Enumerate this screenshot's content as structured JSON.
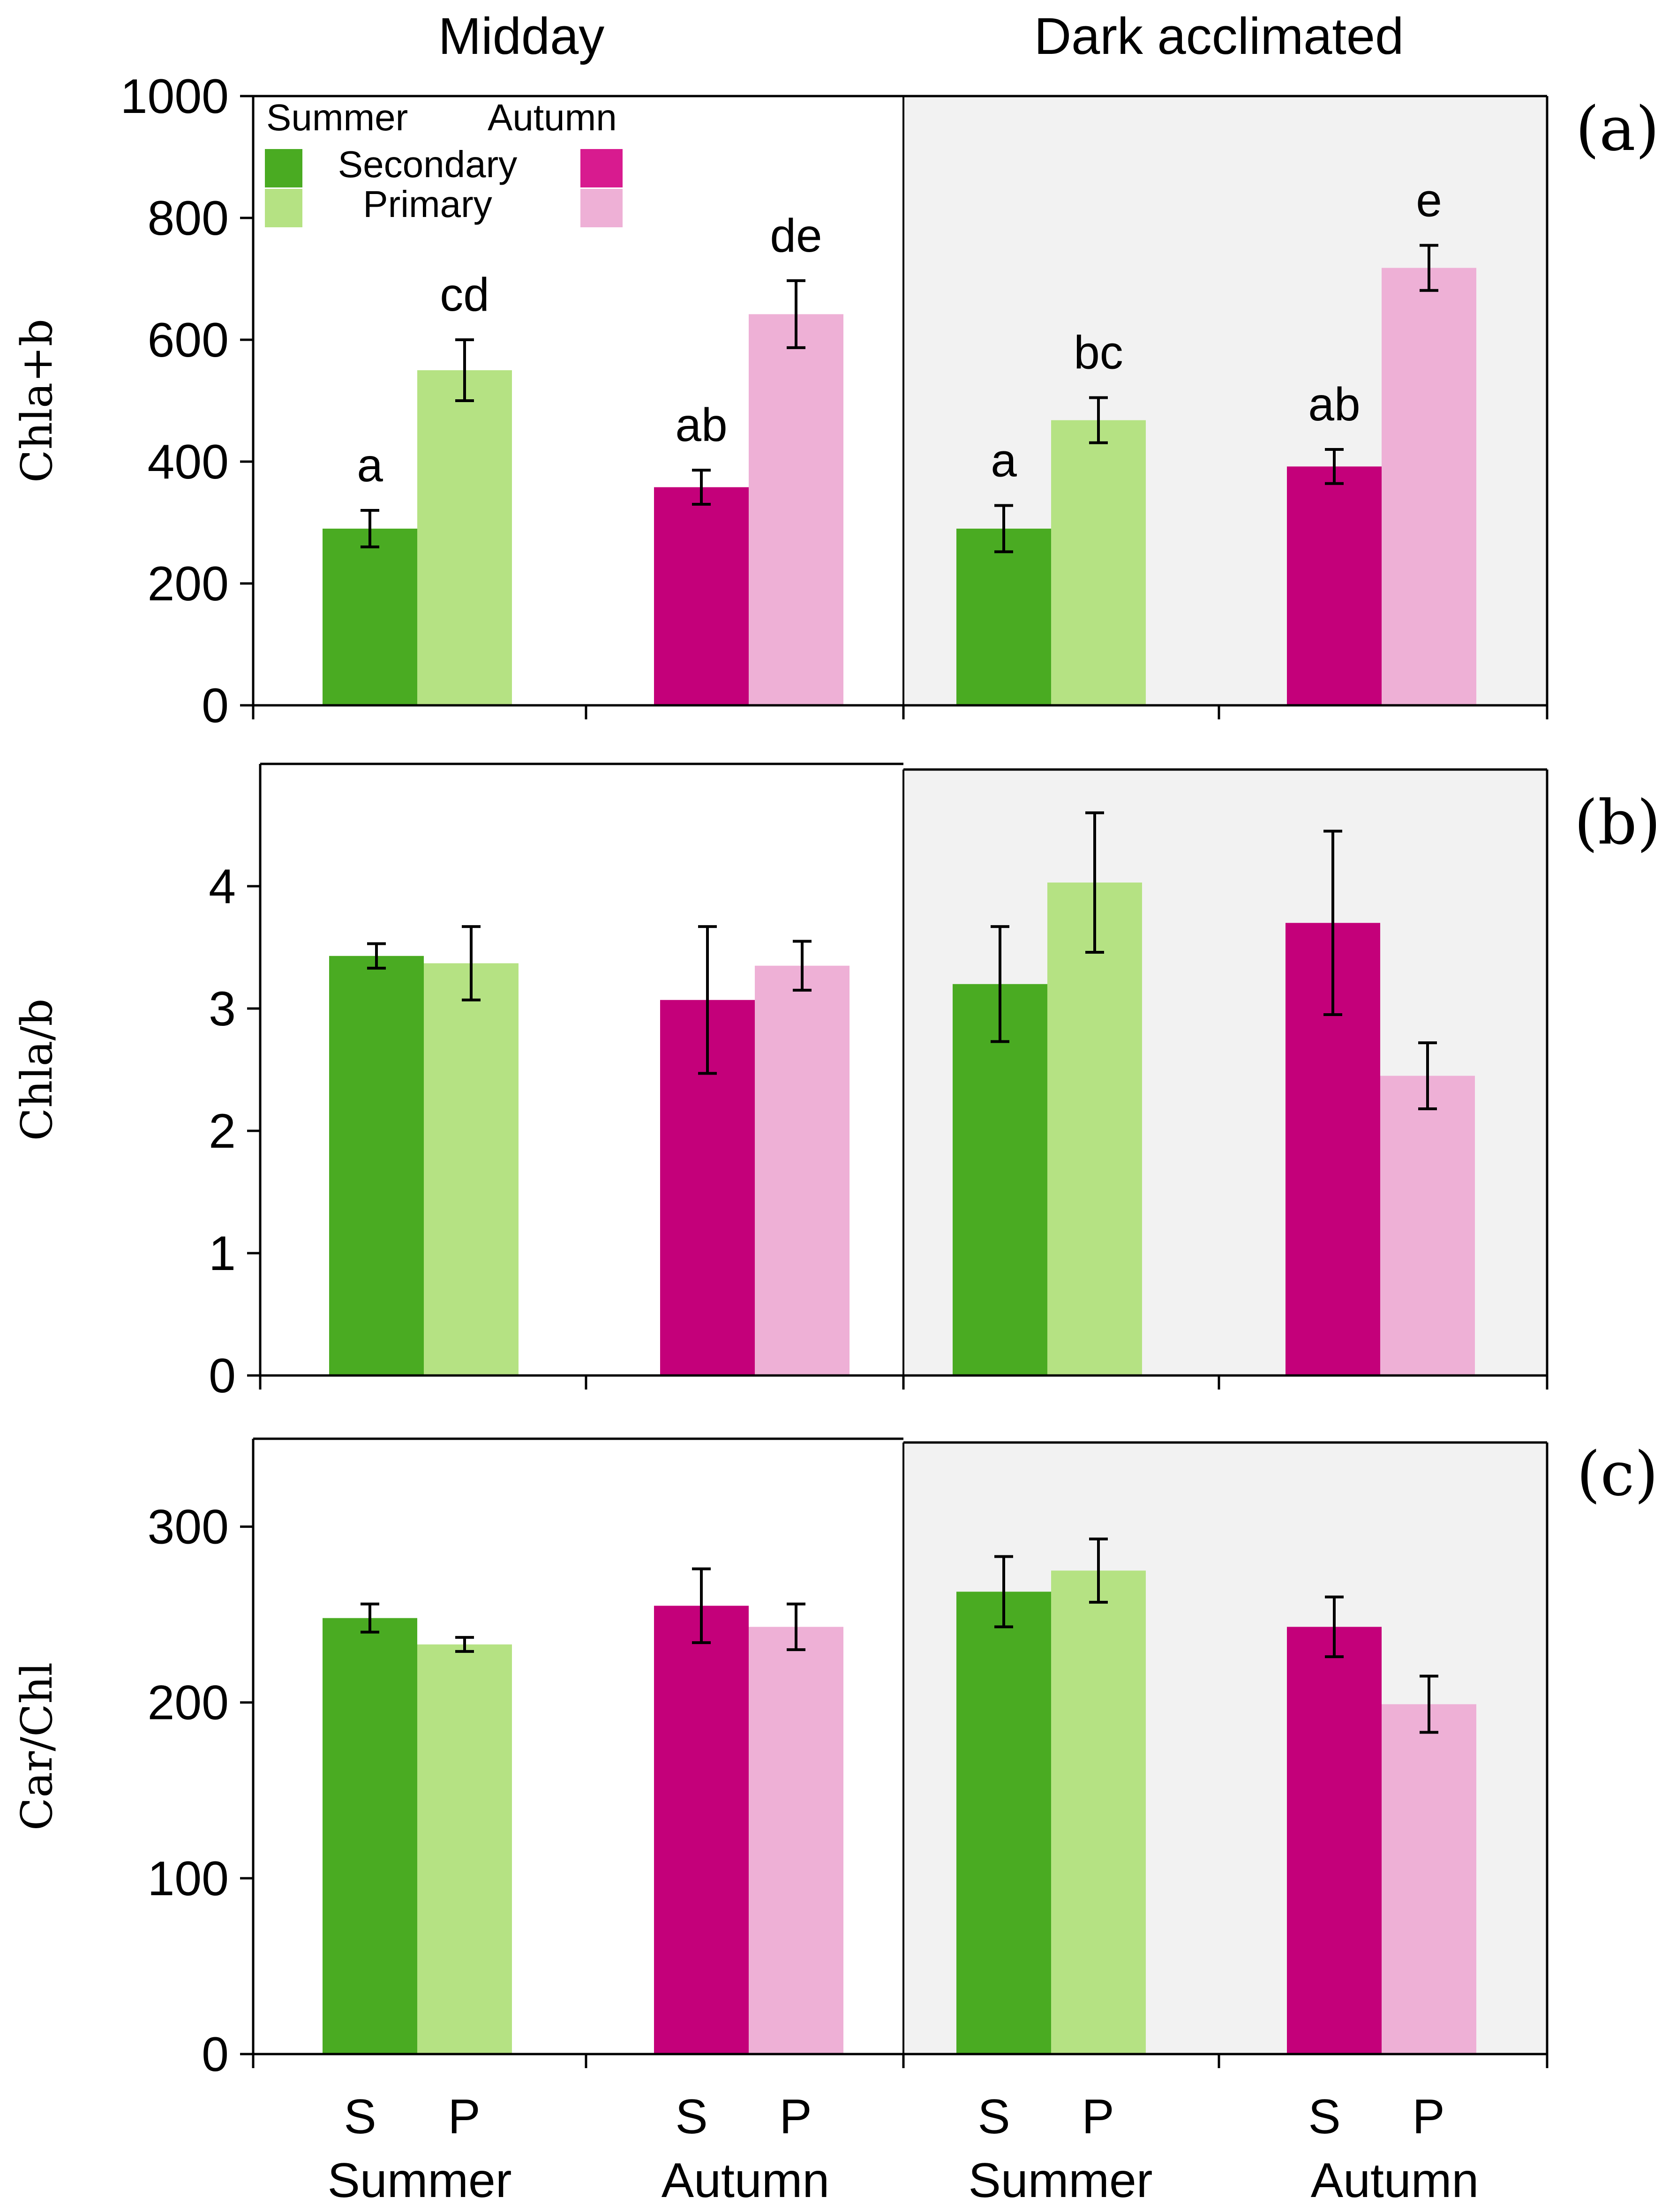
{
  "chart_data": {
    "type": "bar",
    "column_titles": [
      "Midday",
      "Dark acclimated"
    ],
    "x_tick_labels": [
      "S",
      "P",
      "S",
      "P",
      "S",
      "P",
      "S",
      "P"
    ],
    "group_labels": [
      "Summer",
      "Autumn",
      "Summer",
      "Autumn"
    ],
    "legend": {
      "header_left": "Summer",
      "header_right": "Autumn",
      "row_labels": [
        "Secondary",
        "Primary"
      ]
    },
    "colors": {
      "summer_secondary": "#4aab22",
      "summer_primary": "#b5e283",
      "autumn_secondary": "#c4007a",
      "autumn_primary": "#eeb0d6",
      "shade": "#f2f2f2"
    },
    "panels": [
      {
        "tag": "(a)",
        "ylabel": "Chla+b",
        "ylim": [
          0,
          1000
        ],
        "yticks": [
          "0",
          "200",
          "400",
          "600",
          "800",
          "1000"
        ],
        "bars": [
          {
            "condition": "Midday",
            "season": "Summer",
            "leaf": "S",
            "value": 290,
            "err": 30,
            "letter": "a"
          },
          {
            "condition": "Midday",
            "season": "Summer",
            "leaf": "P",
            "value": 550,
            "err": 50,
            "letter": "cd"
          },
          {
            "condition": "Midday",
            "season": "Autumn",
            "leaf": "S",
            "value": 358,
            "err": 28,
            "letter": "ab"
          },
          {
            "condition": "Midday",
            "season": "Autumn",
            "leaf": "P",
            "value": 642,
            "err": 55,
            "letter": "de"
          },
          {
            "condition": "Dark acclimated",
            "season": "Summer",
            "leaf": "S",
            "value": 290,
            "err": 38,
            "letter": "a"
          },
          {
            "condition": "Dark acclimated",
            "season": "Summer",
            "leaf": "P",
            "value": 468,
            "err": 37,
            "letter": "bc"
          },
          {
            "condition": "Dark acclimated",
            "season": "Autumn",
            "leaf": "S",
            "value": 392,
            "err": 28,
            "letter": "ab"
          },
          {
            "condition": "Dark acclimated",
            "season": "Autumn",
            "leaf": "P",
            "value": 718,
            "err": 37,
            "letter": "e"
          }
        ]
      },
      {
        "tag": "(b)",
        "ylabel": "Chla/b",
        "ylim": [
          0,
          5
        ],
        "yticks": [
          "0",
          "1",
          "2",
          "3",
          "4"
        ],
        "bars": [
          {
            "condition": "Midday",
            "season": "Summer",
            "leaf": "S",
            "value": 3.43,
            "err": 0.1
          },
          {
            "condition": "Midday",
            "season": "Summer",
            "leaf": "P",
            "value": 3.37,
            "err": 0.3
          },
          {
            "condition": "Midday",
            "season": "Autumn",
            "leaf": "S",
            "value": 3.07,
            "err": 0.6
          },
          {
            "condition": "Midday",
            "season": "Autumn",
            "leaf": "P",
            "value": 3.35,
            "err": 0.2
          },
          {
            "condition": "Dark acclimated",
            "season": "Summer",
            "leaf": "S",
            "value": 3.2,
            "err": 0.47
          },
          {
            "condition": "Dark acclimated",
            "season": "Summer",
            "leaf": "P",
            "value": 4.03,
            "err": 0.57
          },
          {
            "condition": "Dark acclimated",
            "season": "Autumn",
            "leaf": "S",
            "value": 3.7,
            "err": 0.75
          },
          {
            "condition": "Dark acclimated",
            "season": "Autumn",
            "leaf": "P",
            "value": 2.45,
            "err": 0.27
          }
        ]
      },
      {
        "tag": "(c)",
        "ylabel": "Car/Chl",
        "ylim": [
          0,
          350
        ],
        "yticks": [
          "0",
          "100",
          "200",
          "300"
        ],
        "bars": [
          {
            "condition": "Midday",
            "season": "Summer",
            "leaf": "S",
            "value": 248,
            "err": 8
          },
          {
            "condition": "Midday",
            "season": "Summer",
            "leaf": "P",
            "value": 233,
            "err": 4
          },
          {
            "condition": "Midday",
            "season": "Autumn",
            "leaf": "S",
            "value": 255,
            "err": 21
          },
          {
            "condition": "Midday",
            "season": "Autumn",
            "leaf": "P",
            "value": 243,
            "err": 13
          },
          {
            "condition": "Dark acclimated",
            "season": "Summer",
            "leaf": "S",
            "value": 263,
            "err": 20
          },
          {
            "condition": "Dark acclimated",
            "season": "Summer",
            "leaf": "P",
            "value": 275,
            "err": 18
          },
          {
            "condition": "Dark acclimated",
            "season": "Autumn",
            "leaf": "S",
            "value": 243,
            "err": 17
          },
          {
            "condition": "Dark acclimated",
            "season": "Autumn",
            "leaf": "P",
            "value": 199,
            "err": 16
          }
        ]
      }
    ]
  }
}
